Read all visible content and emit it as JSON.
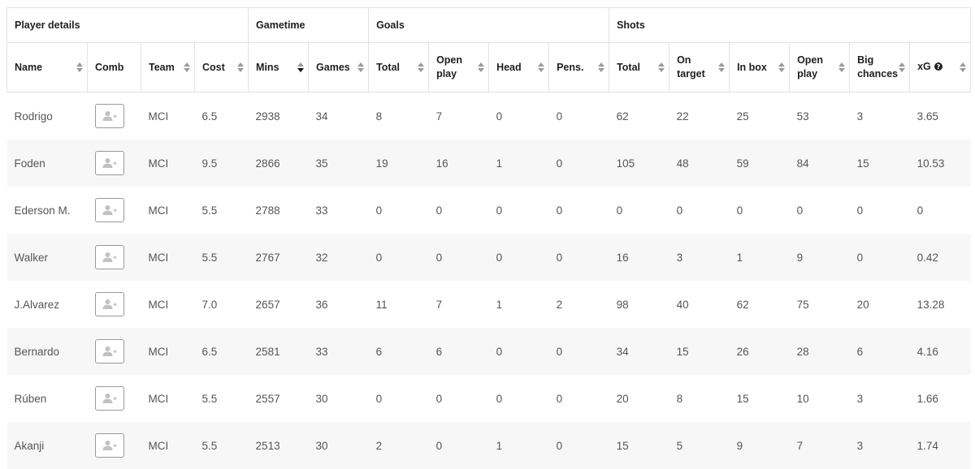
{
  "groups": {
    "player_details": "Player details",
    "gametime": "Gametime",
    "goals": "Goals",
    "shots": "Shots"
  },
  "columns": {
    "name": "Name",
    "comb": "Comb",
    "team": "Team",
    "cost": "Cost",
    "mins": "Mins",
    "games": "Games",
    "goals_total": "Total",
    "goals_open_play_1": "Open",
    "goals_open_play_2": "play",
    "head": "Head",
    "pens": "Pens.",
    "shots_total": "Total",
    "on_target_1": "On",
    "on_target_2": "target",
    "in_box": "In box",
    "shots_open_play_1": "Open",
    "shots_open_play_2": "play",
    "big_chances_1": "Big",
    "big_chances_2": "chances",
    "xg": "xG"
  },
  "icons": {
    "sort": "sort-arrows-icon",
    "sort_active": "sort-descending-icon",
    "info": "question-circle-icon",
    "comb": "add-user-icon"
  },
  "rows": [
    {
      "name": "Rodrigo",
      "team": "MCI",
      "cost": "6.5",
      "mins": "2938",
      "games": "34",
      "goals_total": "8",
      "goals_open_play": "7",
      "head": "0",
      "pens": "0",
      "shots_total": "62",
      "on_target": "22",
      "in_box": "25",
      "shots_open_play": "53",
      "big_chances": "3",
      "xg": "3.65"
    },
    {
      "name": "Foden",
      "team": "MCI",
      "cost": "9.5",
      "mins": "2866",
      "games": "35",
      "goals_total": "19",
      "goals_open_play": "16",
      "head": "1",
      "pens": "0",
      "shots_total": "105",
      "on_target": "48",
      "in_box": "59",
      "shots_open_play": "84",
      "big_chances": "15",
      "xg": "10.53"
    },
    {
      "name": "Ederson M.",
      "team": "MCI",
      "cost": "5.5",
      "mins": "2788",
      "games": "33",
      "goals_total": "0",
      "goals_open_play": "0",
      "head": "0",
      "pens": "0",
      "shots_total": "0",
      "on_target": "0",
      "in_box": "0",
      "shots_open_play": "0",
      "big_chances": "0",
      "xg": "0"
    },
    {
      "name": "Walker",
      "team": "MCI",
      "cost": "5.5",
      "mins": "2767",
      "games": "32",
      "goals_total": "0",
      "goals_open_play": "0",
      "head": "0",
      "pens": "0",
      "shots_total": "16",
      "on_target": "3",
      "in_box": "1",
      "shots_open_play": "9",
      "big_chances": "0",
      "xg": "0.42"
    },
    {
      "name": "J.Alvarez",
      "team": "MCI",
      "cost": "7.0",
      "mins": "2657",
      "games": "36",
      "goals_total": "11",
      "goals_open_play": "7",
      "head": "1",
      "pens": "2",
      "shots_total": "98",
      "on_target": "40",
      "in_box": "62",
      "shots_open_play": "75",
      "big_chances": "20",
      "xg": "13.28"
    },
    {
      "name": "Bernardo",
      "team": "MCI",
      "cost": "6.5",
      "mins": "2581",
      "games": "33",
      "goals_total": "6",
      "goals_open_play": "6",
      "head": "0",
      "pens": "0",
      "shots_total": "34",
      "on_target": "15",
      "in_box": "26",
      "shots_open_play": "28",
      "big_chances": "6",
      "xg": "4.16"
    },
    {
      "name": "Rúben",
      "team": "MCI",
      "cost": "5.5",
      "mins": "2557",
      "games": "30",
      "goals_total": "0",
      "goals_open_play": "0",
      "head": "0",
      "pens": "0",
      "shots_total": "20",
      "on_target": "8",
      "in_box": "15",
      "shots_open_play": "10",
      "big_chances": "3",
      "xg": "1.66"
    },
    {
      "name": "Akanji",
      "team": "MCI",
      "cost": "5.5",
      "mins": "2513",
      "games": "30",
      "goals_total": "2",
      "goals_open_play": "0",
      "head": "1",
      "pens": "0",
      "shots_total": "15",
      "on_target": "5",
      "in_box": "9",
      "shots_open_play": "7",
      "big_chances": "3",
      "xg": "1.74"
    }
  ]
}
